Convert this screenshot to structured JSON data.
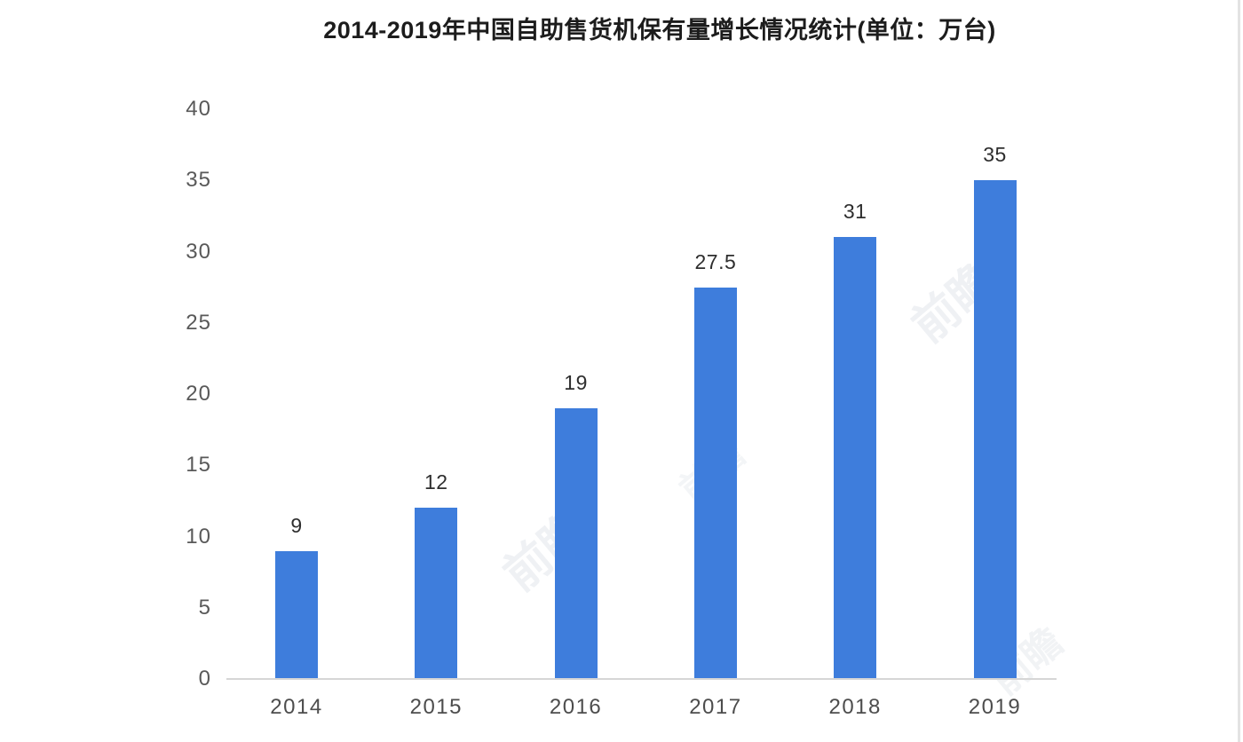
{
  "chart_data": {
    "type": "bar",
    "title": "2014-2019年中国自助售货机保有量增长情况统计(单位：万台)",
    "categories": [
      "2014",
      "2015",
      "2016",
      "2017",
      "2018",
      "2019"
    ],
    "values": [
      9,
      12,
      19,
      27.5,
      31,
      35
    ],
    "value_labels": [
      "9",
      "12",
      "19",
      "27.5",
      "31",
      "35"
    ],
    "xlabel": "",
    "ylabel": "",
    "ylim": [
      0,
      40
    ],
    "yticks": [
      0,
      5,
      10,
      15,
      20,
      25,
      30,
      35,
      40
    ],
    "grid": false,
    "legend_position": "none",
    "bar_color": "#3E7DDC",
    "axis_line_color": "#d6d6d6",
    "tick_label_color": "#595959",
    "value_label_color": "#2e2e2e",
    "title_color": "#1c1c1c"
  },
  "watermark": {
    "text": "前瞻"
  }
}
